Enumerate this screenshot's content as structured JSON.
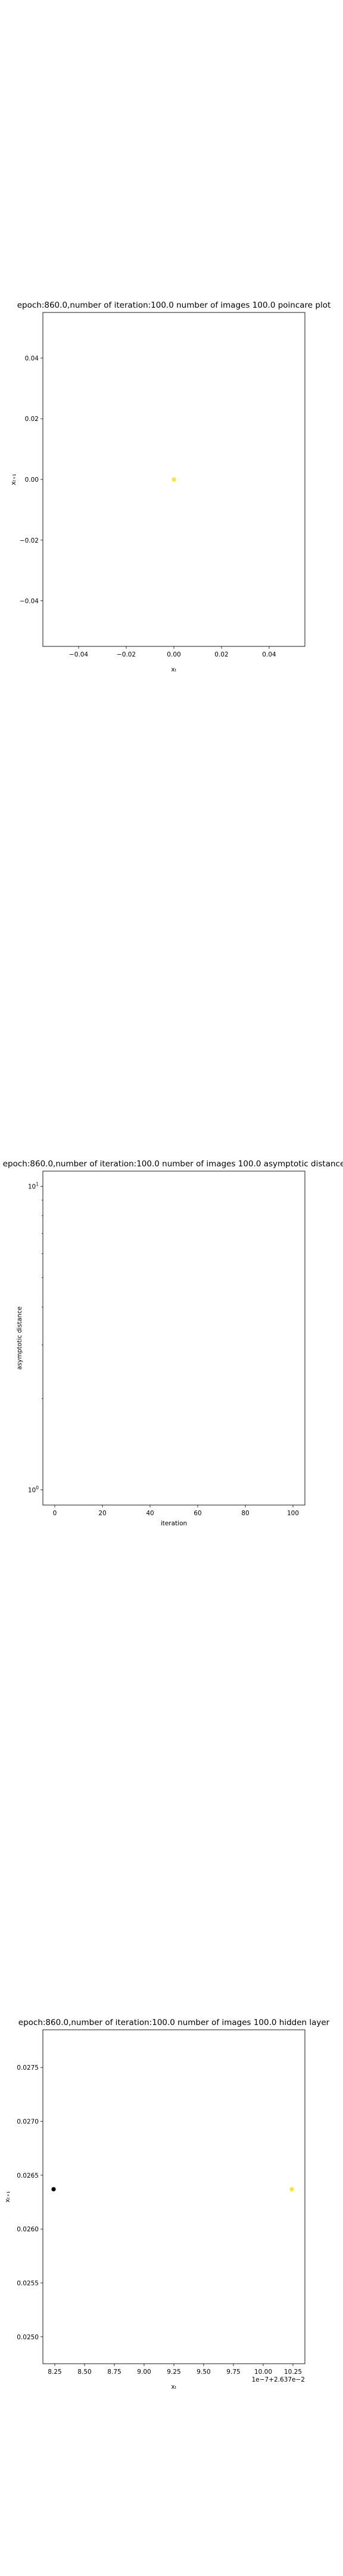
{
  "chart_data": [
    {
      "type": "scatter",
      "title": "epoch:860.0,number of iteration:100.0 number of images 100.0 poincare plot",
      "xlabel": "xₜ",
      "ylabel": "xₜ₊₁",
      "xlim": [
        -0.055,
        0.055
      ],
      "ylim": [
        -0.055,
        0.055
      ],
      "xticks": [
        -0.04,
        -0.02,
        0.0,
        0.02,
        0.04
      ],
      "yticks": [
        -0.04,
        -0.02,
        0.0,
        0.02,
        0.04
      ],
      "xticklabels": [
        "−0.04",
        "−0.02",
        "0.00",
        "0.02",
        "0.04"
      ],
      "yticklabels": [
        "−0.04",
        "−0.02",
        "0.00",
        "0.02",
        "0.04"
      ],
      "offset_text": "",
      "points": [
        {
          "x": 0.0,
          "y": 0.0,
          "color": "#fde725"
        }
      ],
      "grid": false
    },
    {
      "type": "line",
      "title": "epoch:860.0,number of iteration:100.0  number of images 100.0 asymptotic distance",
      "xlabel": "iteration",
      "ylabel": "asymptotic distance",
      "yscale": "log",
      "xlim": [
        -5,
        105
      ],
      "xticks": [
        0,
        20,
        40,
        60,
        80,
        100
      ],
      "xticklabels": [
        "0",
        "20",
        "40",
        "60",
        "80",
        "100"
      ],
      "yticks_exp": [
        0,
        1
      ],
      "yticklabels": [
        {
          "base": "10",
          "exp": "0"
        },
        {
          "base": "10",
          "exp": "1"
        }
      ],
      "series": [],
      "grid": false
    },
    {
      "type": "scatter",
      "title": "epoch:860.0,number of iteration:100.0  number of images 100.0 hidden layer",
      "xlabel": "xₜ",
      "ylabel": "xₜ₊₁",
      "xlim": [
        8.15,
        10.35
      ],
      "ylim": [
        0.02475,
        0.02785
      ],
      "xticks": [
        8.25,
        8.5,
        8.75,
        9.0,
        9.25,
        9.5,
        9.75,
        10.0,
        10.25
      ],
      "xticklabels": [
        "8.25",
        "8.50",
        "8.75",
        "9.00",
        "9.25",
        "9.50",
        "9.75",
        "10.00",
        "10.25"
      ],
      "yticks": [
        0.025,
        0.0255,
        0.026,
        0.0265,
        0.027,
        0.0275
      ],
      "yticklabels": [
        "0.0250",
        "0.0255",
        "0.0260",
        "0.0265",
        "0.0270",
        "0.0275"
      ],
      "offset_text": "1e−7+2.637e−2",
      "points": [
        {
          "x": 8.24,
          "y": 0.02637,
          "color": "#000000"
        },
        {
          "x": 10.24,
          "y": 0.02637,
          "color": "#fde725"
        }
      ],
      "grid": false
    }
  ]
}
